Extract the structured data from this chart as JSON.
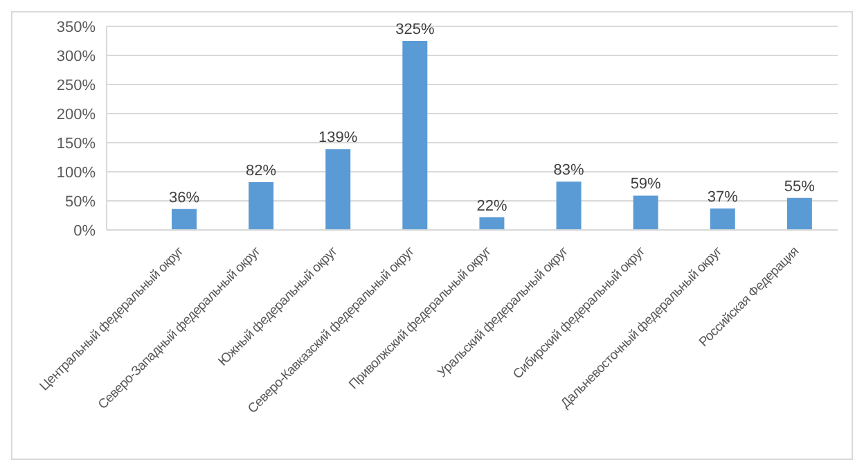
{
  "chart_data": {
    "type": "bar",
    "categories": [
      "Центральный федеральный округ",
      "Северо-Западный федеральный округ",
      "Южный федеральный округ",
      "Северо-Кавказский федеральный округ",
      "Приволжский федеральный округ",
      "Уральский федеральный округ",
      "Сибирский  федеральный округ",
      "Дальневосточный федеральный округ",
      "Российская Федерация"
    ],
    "values": [
      36,
      82,
      139,
      325,
      22,
      83,
      59,
      37,
      55
    ],
    "value_labels": [
      "36%",
      "82%",
      "139%",
      "325%",
      "22%",
      "83%",
      "59%",
      "37%",
      "55%"
    ],
    "color": "#5b9bd5",
    "ylim": [
      0,
      350
    ],
    "yticks": [
      {
        "value": 0,
        "label": "0%"
      },
      {
        "value": 50,
        "label": "50%"
      },
      {
        "value": 100,
        "label": "100%"
      },
      {
        "value": 150,
        "label": "150%"
      },
      {
        "value": 200,
        "label": "200%"
      },
      {
        "value": 250,
        "label": "250%"
      },
      {
        "value": 300,
        "label": "300%"
      },
      {
        "value": 350,
        "label": "350%"
      }
    ],
    "grid": "y",
    "legend": false
  }
}
